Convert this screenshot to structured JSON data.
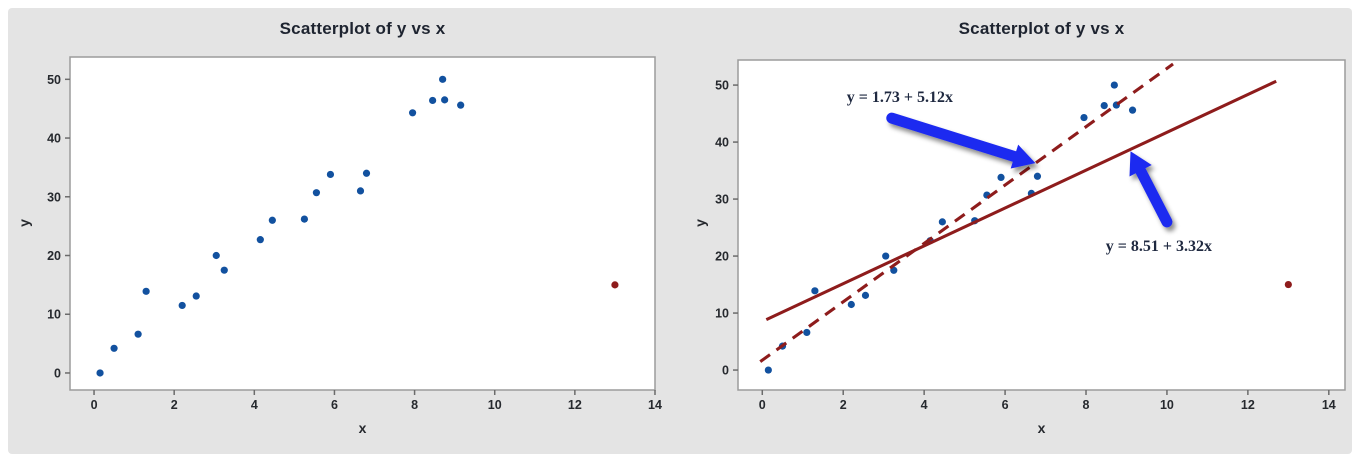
{
  "panel": {
    "background": "#e4e4e4"
  },
  "chart_data": [
    {
      "type": "scatter",
      "title": "Scatterplot of y vs x",
      "xlabel": "x",
      "ylabel": "y",
      "xlim": [
        -0.6,
        14.0
      ],
      "ylim": [
        -2.9,
        53.8
      ],
      "xticks": [
        0,
        2,
        4,
        6,
        8,
        10,
        12,
        14
      ],
      "yticks": [
        0,
        10,
        20,
        30,
        40,
        50
      ],
      "grid": false,
      "legend": "none",
      "series": [
        {
          "name": "data points",
          "marker": "circle",
          "color": "#12519f",
          "points": [
            [
              0.15,
              0
            ],
            [
              0.5,
              4.2
            ],
            [
              1.1,
              6.6
            ],
            [
              1.3,
              13.9
            ],
            [
              2.2,
              11.5
            ],
            [
              2.55,
              13.1
            ],
            [
              3.05,
              20
            ],
            [
              3.25,
              17.5
            ],
            [
              4.15,
              22.7
            ],
            [
              4.45,
              26
            ],
            [
              5.25,
              26.2
            ],
            [
              5.55,
              30.7
            ],
            [
              5.9,
              33.8
            ],
            [
              6.65,
              31
            ],
            [
              6.8,
              34
            ],
            [
              7.95,
              44.3
            ],
            [
              8.45,
              46.4
            ],
            [
              8.7,
              50
            ],
            [
              8.75,
              46.5
            ],
            [
              9.15,
              45.6
            ]
          ]
        },
        {
          "name": "outlier",
          "marker": "circle",
          "color": "#8e1c1c",
          "points": [
            [
              13,
              15
            ]
          ]
        }
      ]
    },
    {
      "type": "scatter",
      "title": "Scatterplot of y vs x",
      "xlabel": "x",
      "ylabel": "y",
      "xlim": [
        -0.6,
        14.4
      ],
      "ylim": [
        -3.5,
        54.4
      ],
      "xticks": [
        0,
        2,
        4,
        6,
        8,
        10,
        12,
        14
      ],
      "yticks": [
        0,
        10,
        20,
        30,
        40,
        50
      ],
      "grid": false,
      "legend": "none",
      "series": [
        {
          "name": "data points",
          "marker": "circle",
          "color": "#12519f",
          "points": [
            [
              0.15,
              0
            ],
            [
              0.5,
              4.2
            ],
            [
              1.1,
              6.6
            ],
            [
              1.3,
              13.9
            ],
            [
              2.2,
              11.5
            ],
            [
              2.55,
              13.1
            ],
            [
              3.05,
              20
            ],
            [
              3.25,
              17.5
            ],
            [
              4.15,
              22.7
            ],
            [
              4.45,
              26
            ],
            [
              5.25,
              26.2
            ],
            [
              5.55,
              30.7
            ],
            [
              5.9,
              33.8
            ],
            [
              6.65,
              31
            ],
            [
              6.8,
              34
            ],
            [
              7.95,
              44.3
            ],
            [
              8.45,
              46.4
            ],
            [
              8.7,
              50
            ],
            [
              8.75,
              46.5
            ],
            [
              9.15,
              45.6
            ]
          ]
        },
        {
          "name": "outlier",
          "marker": "circle",
          "color": "#8e1c1c",
          "points": [
            [
              13,
              15
            ]
          ]
        }
      ],
      "lines": [
        {
          "name": "fit-without-outlier",
          "label": "y = 1.73 + 5.12x",
          "intercept": 1.73,
          "slope": 5.12,
          "style": "dashed",
          "color": "#8e1c1c",
          "x_range": [
            -0.05,
            10.15
          ]
        },
        {
          "name": "fit-with-outlier",
          "label": "y = 8.51 + 3.32x",
          "intercept": 8.51,
          "slope": 3.32,
          "style": "solid",
          "color": "#8e1c1c",
          "x_range": [
            0.1,
            12.7
          ]
        }
      ],
      "annotations": [
        {
          "text": "y = 1.73 + 5.12x",
          "text_pos": [
            3.4,
            47.9
          ],
          "arrow_from": [
            3.2,
            44.2
          ],
          "arrow_to": [
            6.75,
            36.3
          ],
          "arrow_color": "#1e2cf0"
        },
        {
          "text": "y = 8.51 + 3.32x",
          "text_pos": [
            9.8,
            21.8
          ],
          "arrow_from": [
            10.0,
            26.0
          ],
          "arrow_to": [
            9.1,
            38.4
          ],
          "arrow_color": "#1e2cf0"
        }
      ]
    }
  ]
}
